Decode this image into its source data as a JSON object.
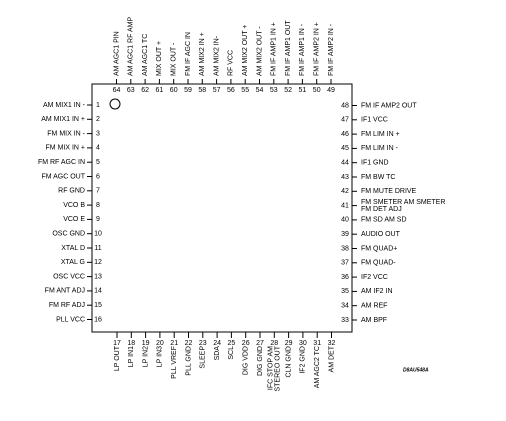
{
  "pins": [
    {
      "number": 1,
      "lines": [
        "AM MIX1 IN -"
      ]
    },
    {
      "number": 2,
      "lines": [
        "AM MIX1 IN +"
      ]
    },
    {
      "number": 3,
      "lines": [
        "FM MIX IN -"
      ]
    },
    {
      "number": 4,
      "lines": [
        "FM MIX IN +"
      ]
    },
    {
      "number": 5,
      "lines": [
        "FM RF AGC IN"
      ]
    },
    {
      "number": 6,
      "lines": [
        "FM AGC OUT"
      ]
    },
    {
      "number": 7,
      "lines": [
        "RF GND"
      ]
    },
    {
      "number": 8,
      "lines": [
        "VCO B"
      ]
    },
    {
      "number": 9,
      "lines": [
        "VCO E"
      ]
    },
    {
      "number": 10,
      "lines": [
        "OSC GND"
      ]
    },
    {
      "number": 11,
      "lines": [
        "XTAL D"
      ]
    },
    {
      "number": 12,
      "lines": [
        "XTAL G"
      ]
    },
    {
      "number": 13,
      "lines": [
        "OSC VCC"
      ]
    },
    {
      "number": 14,
      "lines": [
        "FM ANT ADJ"
      ]
    },
    {
      "number": 15,
      "lines": [
        "FM RF ADJ"
      ]
    },
    {
      "number": 16,
      "lines": [
        "PLL VCC"
      ]
    },
    {
      "number": 17,
      "lines": [
        "LP OUT"
      ]
    },
    {
      "number": 18,
      "lines": [
        "LP IN1"
      ]
    },
    {
      "number": 19,
      "lines": [
        "LP IN2"
      ]
    },
    {
      "number": 20,
      "lines": [
        "LP IN3"
      ]
    },
    {
      "number": 21,
      "lines": [
        "PLL VREF"
      ]
    },
    {
      "number": 22,
      "lines": [
        "PLL GND"
      ]
    },
    {
      "number": 23,
      "lines": [
        "SLEEP"
      ]
    },
    {
      "number": 24,
      "lines": [
        "SDA"
      ]
    },
    {
      "number": 25,
      "lines": [
        "SCL"
      ]
    },
    {
      "number": 26,
      "lines": [
        "DIG VDD"
      ]
    },
    {
      "number": 27,
      "lines": [
        "DIG GND"
      ]
    },
    {
      "number": 28,
      "lines": [
        "IFC STOP AM",
        "STEREO OUT"
      ]
    },
    {
      "number": 29,
      "lines": [
        "CLN GND"
      ]
    },
    {
      "number": 30,
      "lines": [
        "IF2 GND"
      ]
    },
    {
      "number": 31,
      "lines": [
        "AM AGC2 TC"
      ]
    },
    {
      "number": 32,
      "lines": [
        "AM DET"
      ]
    },
    {
      "number": 33,
      "lines": [
        "AM BPF"
      ]
    },
    {
      "number": 34,
      "lines": [
        "AM REF"
      ]
    },
    {
      "number": 35,
      "lines": [
        "AM IF2 IN"
      ]
    },
    {
      "number": 36,
      "lines": [
        "IF2 VCC"
      ]
    },
    {
      "number": 37,
      "lines": [
        "FM QUAD-"
      ]
    },
    {
      "number": 38,
      "lines": [
        "FM QUAD+"
      ]
    },
    {
      "number": 39,
      "lines": [
        "AUDIO OUT"
      ]
    },
    {
      "number": 40,
      "lines": [
        "FM SD AM SD"
      ]
    },
    {
      "number": 41,
      "lines": [
        "FM SMETER AM SMETER",
        "FM DET ADJ"
      ]
    },
    {
      "number": 42,
      "lines": [
        "FM MUTE DRIVE"
      ]
    },
    {
      "number": 43,
      "lines": [
        "FM BW TC"
      ]
    },
    {
      "number": 44,
      "lines": [
        "IF1 GND"
      ]
    },
    {
      "number": 45,
      "lines": [
        "FM LIM IN -"
      ]
    },
    {
      "number": 46,
      "lines": [
        "FM LIM IN +"
      ]
    },
    {
      "number": 47,
      "lines": [
        "IF1 VCC"
      ]
    },
    {
      "number": 48,
      "lines": [
        "FM IF AMP2 OUT"
      ]
    },
    {
      "number": 49,
      "lines": [
        "FM IF AMP2 IN -"
      ]
    },
    {
      "number": 50,
      "lines": [
        "FM IF AMP2 IN +"
      ]
    },
    {
      "number": 51,
      "lines": [
        "FM IF AMP1 IN -"
      ]
    },
    {
      "number": 52,
      "lines": [
        "FM IF AMP1 OUT"
      ]
    },
    {
      "number": 53,
      "lines": [
        "FM IF AMP1 IN +"
      ]
    },
    {
      "number": 54,
      "lines": [
        "AM MIX2 OUT -"
      ]
    },
    {
      "number": 55,
      "lines": [
        "AM MIX2 OUT +"
      ]
    },
    {
      "number": 56,
      "lines": [
        "RF VCC"
      ]
    },
    {
      "number": 57,
      "lines": [
        "AM MIX2 IN-"
      ]
    },
    {
      "number": 58,
      "lines": [
        "AM MIX2 IN +"
      ]
    },
    {
      "number": 59,
      "lines": [
        "FM IF AGC IN"
      ]
    },
    {
      "number": 60,
      "lines": [
        "MIX OUT -"
      ]
    },
    {
      "number": 61,
      "lines": [
        "MIX OUT +"
      ]
    },
    {
      "number": 62,
      "lines": [
        "AM AGC1 TC"
      ]
    },
    {
      "number": 63,
      "lines": [
        "AM AGC1 RF AMP"
      ]
    },
    {
      "number": 64,
      "lines": [
        "AM AGC1 PIN"
      ]
    }
  ],
  "figure_id": "D8AU548A"
}
